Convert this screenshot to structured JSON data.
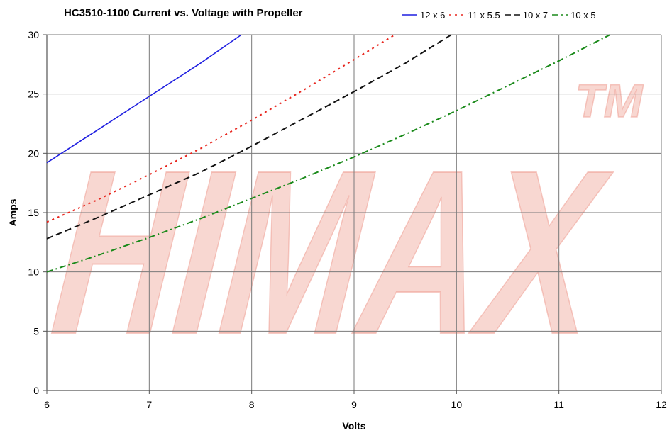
{
  "chart_data": {
    "type": "line",
    "title": "HC3510-1100 Current vs. Voltage with Propeller",
    "xlabel": "Volts",
    "ylabel": "Amps",
    "xlim": [
      6,
      12
    ],
    "ylim": [
      0,
      30
    ],
    "x_ticks": [
      6,
      7,
      8,
      9,
      10,
      11,
      12
    ],
    "y_ticks": [
      0,
      5,
      10,
      15,
      20,
      25,
      30
    ],
    "grid": true,
    "legend_position": "top-right",
    "watermark_text": "HIMAX",
    "watermark_mark": "TM",
    "series": [
      {
        "name": "12 x 6",
        "color": "#1f1fe0",
        "dash": "solid",
        "x": [
          6.0,
          6.5,
          7.0,
          7.5,
          7.9
        ],
        "y": [
          19.2,
          22.0,
          24.8,
          27.6,
          30.0
        ]
      },
      {
        "name": "11 x 5.5",
        "color": "#e8261e",
        "dash": "dot",
        "x": [
          6.0,
          6.5,
          7.0,
          7.5,
          8.0,
          8.5,
          9.0,
          9.4
        ],
        "y": [
          14.2,
          16.1,
          18.2,
          20.4,
          22.8,
          25.3,
          27.9,
          30.0
        ]
      },
      {
        "name": "10 x 7",
        "color": "#111111",
        "dash": "dash",
        "x": [
          6.0,
          6.5,
          7.0,
          7.5,
          8.0,
          8.5,
          9.0,
          9.5,
          9.95
        ],
        "y": [
          12.8,
          14.6,
          16.5,
          18.4,
          20.6,
          22.9,
          25.2,
          27.6,
          30.0
        ]
      },
      {
        "name": "10 x 5",
        "color": "#1a8a1a",
        "dash": "dashdot",
        "x": [
          6.0,
          6.5,
          7.0,
          7.5,
          8.0,
          8.5,
          9.0,
          9.5,
          10.0,
          10.5,
          11.0,
          11.5
        ],
        "y": [
          10.0,
          11.4,
          12.9,
          14.5,
          16.2,
          17.9,
          19.7,
          21.6,
          23.6,
          25.7,
          27.8,
          30.0
        ]
      }
    ]
  }
}
